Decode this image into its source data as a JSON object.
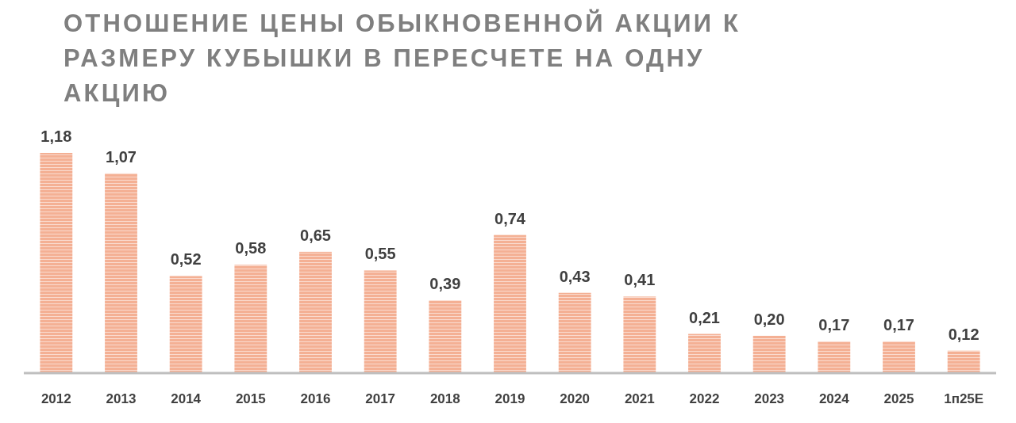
{
  "chart_data": {
    "type": "bar",
    "title": "ОТНОШЕНИЕ ЦЕНЫ ОБЫКНОВЕННОЙ АКЦИИ К РАЗМЕРУ КУБЫШКИ В ПЕРЕСЧЕТЕ НА ОДНУ АКЦИЮ",
    "categories": [
      "2012",
      "2013",
      "2014",
      "2015",
      "2016",
      "2017",
      "2018",
      "2019",
      "2020",
      "2021",
      "2022",
      "2023",
      "2024",
      "2025",
      "1п25E"
    ],
    "values": [
      1.18,
      1.07,
      0.52,
      0.58,
      0.65,
      0.55,
      0.39,
      0.74,
      0.43,
      0.41,
      0.21,
      0.2,
      0.17,
      0.17,
      0.12
    ],
    "value_labels": [
      "1,18",
      "1,07",
      "0,52",
      "0,58",
      "0,65",
      "0,55",
      "0,39",
      "0,74",
      "0,43",
      "0,41",
      "0,21",
      "0,20",
      "0,17",
      "0,17",
      "0,12"
    ],
    "color": "#f4b094"
  }
}
